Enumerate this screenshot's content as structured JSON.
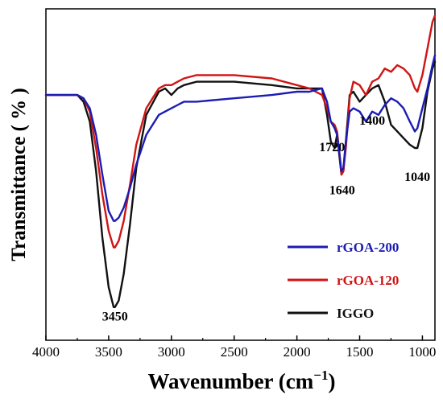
{
  "chart_data": {
    "type": "line",
    "xlabel": "Wavenumber (cm",
    "xlabel_sup": "−1",
    "xlabel_close": ")",
    "ylabel": "Transmittance ( % )",
    "xlim": [
      4000,
      900
    ],
    "x_reversed": true,
    "ylim": [
      0,
      100
    ],
    "yticks_shown": false,
    "grid": false,
    "xticks": [
      4000,
      3500,
      3000,
      2500,
      2000,
      1500,
      1000
    ],
    "xtick_labels": [
      "4000",
      "3500",
      "3000",
      "2500",
      "2000",
      "1500",
      "1000"
    ],
    "legend_position": "bottom-right",
    "annotations": [
      {
        "text": "3450",
        "x": 3450,
        "y": 6
      },
      {
        "text": "1720",
        "x": 1720,
        "y": 57
      },
      {
        "text": "1640",
        "x": 1640,
        "y": 44
      },
      {
        "text": "1400",
        "x": 1400,
        "y": 65
      },
      {
        "text": "1040",
        "x": 1040,
        "y": 48
      }
    ],
    "series": [
      {
        "name": "rGOA-200",
        "color": "#1c1cb4",
        "x": [
          4000,
          3750,
          3700,
          3650,
          3600,
          3550,
          3500,
          3460,
          3450,
          3420,
          3380,
          3330,
          3280,
          3200,
          3100,
          3000,
          2950,
          2900,
          2800,
          2500,
          2200,
          2000,
          1900,
          1800,
          1760,
          1730,
          1700,
          1680,
          1660,
          1645,
          1630,
          1610,
          1580,
          1550,
          1500,
          1450,
          1400,
          1350,
          1300,
          1250,
          1200,
          1150,
          1100,
          1060,
          1040,
          1000,
          960,
          920,
          900
        ],
        "y": [
          74,
          74,
          73,
          70,
          62,
          50,
          39,
          36,
          36,
          37,
          40,
          46,
          53,
          62,
          68,
          70,
          71,
          72,
          72,
          73,
          74,
          75,
          75,
          76,
          72,
          66,
          64,
          62,
          56,
          51,
          52,
          60,
          69,
          70,
          69,
          66,
          69,
          68,
          71,
          73,
          72,
          70,
          66,
          63,
          64,
          70,
          76,
          83,
          86
        ]
      },
      {
        "name": "rGOA-120",
        "color": "#d01414",
        "x": [
          4000,
          3750,
          3700,
          3650,
          3600,
          3550,
          3500,
          3460,
          3450,
          3420,
          3380,
          3330,
          3280,
          3200,
          3100,
          3050,
          3000,
          2950,
          2900,
          2800,
          2500,
          2200,
          2000,
          1900,
          1800,
          1760,
          1730,
          1700,
          1680,
          1660,
          1645,
          1630,
          1610,
          1580,
          1550,
          1500,
          1450,
          1400,
          1350,
          1300,
          1250,
          1200,
          1150,
          1100,
          1060,
          1040,
          1000,
          960,
          920,
          900
        ],
        "y": [
          74,
          74,
          73,
          69,
          58,
          44,
          33,
          28,
          28,
          30,
          36,
          47,
          59,
          70,
          76,
          77,
          77,
          78,
          79,
          80,
          80,
          79,
          77,
          76,
          74,
          70,
          66,
          65,
          63,
          56,
          50,
          51,
          58,
          73,
          78,
          77,
          74,
          78,
          79,
          82,
          81,
          83,
          82,
          80,
          76,
          75,
          80,
          88,
          96,
          98
        ]
      },
      {
        "name": "IGGO",
        "color": "#111111",
        "x": [
          4000,
          3750,
          3700,
          3650,
          3600,
          3550,
          3500,
          3460,
          3450,
          3420,
          3380,
          3330,
          3280,
          3200,
          3100,
          3050,
          3000,
          2950,
          2900,
          2800,
          2500,
          2200,
          2000,
          1900,
          1800,
          1760,
          1730,
          1700,
          1680,
          1660,
          1645,
          1630,
          1610,
          1580,
          1550,
          1500,
          1450,
          1400,
          1350,
          1300,
          1250,
          1200,
          1150,
          1100,
          1060,
          1040,
          1000,
          960,
          920,
          900
        ],
        "y": [
          74,
          74,
          72,
          66,
          51,
          31,
          16,
          10,
          10,
          12,
          20,
          35,
          52,
          68,
          75,
          76,
          74,
          76,
          77,
          78,
          78,
          77,
          76,
          76,
          76,
          68,
          60,
          58,
          62,
          55,
          50,
          51,
          60,
          74,
          75,
          72,
          74,
          76,
          77,
          72,
          65,
          63,
          61,
          59,
          58,
          58,
          64,
          75,
          82,
          84
        ]
      }
    ]
  }
}
